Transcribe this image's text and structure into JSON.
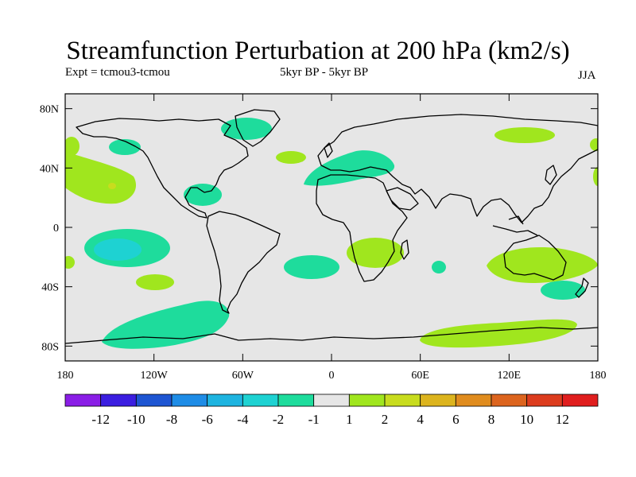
{
  "title": "Streamfunction Perturbation at 200 hPa (km2/s)",
  "experiment": "Expt = tcmou3-tcmou",
  "period": "5kyr BP - 5kyr BP",
  "season": "JJA",
  "map": {
    "ocean_color": "#e6e6e6",
    "y_ticks": [
      {
        "label": "80N",
        "lat": 80
      },
      {
        "label": "40N",
        "lat": 40
      },
      {
        "label": "0",
        "lat": 0
      },
      {
        "label": "40S",
        "lat": -40
      },
      {
        "label": "80S",
        "lat": -80
      }
    ],
    "x_ticks": [
      {
        "label": "180",
        "lon": -180
      },
      {
        "label": "120W",
        "lon": -120
      },
      {
        "label": "60W",
        "lon": -60
      },
      {
        "label": "0",
        "lon": 0
      },
      {
        "label": "60E",
        "lon": 60
      },
      {
        "label": "120E",
        "lon": 120
      },
      {
        "label": "180",
        "lon": 180
      }
    ]
  },
  "colorbar": {
    "colors": [
      "#8a1ee6",
      "#3b1ee0",
      "#1e55d2",
      "#1e8ce6",
      "#1eb4e0",
      "#1ed2d2",
      "#1edc9c",
      "#e6e6e6",
      "#a0e61e",
      "#c8dc1e",
      "#dcb41e",
      "#e08c1e",
      "#dc641e",
      "#dc3c1e",
      "#e01e1e"
    ],
    "labels": [
      "-12",
      "-10",
      "-8",
      "-6",
      "-4",
      "-2",
      "-1",
      "1",
      "2",
      "4",
      "6",
      "8",
      "10",
      "12"
    ]
  }
}
